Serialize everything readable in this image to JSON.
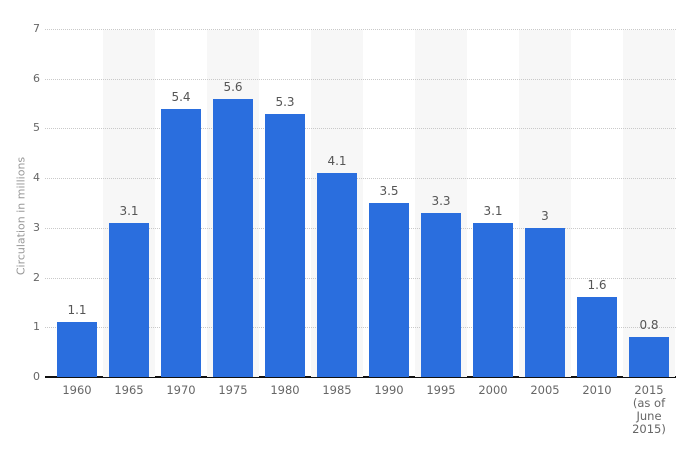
{
  "chart_data": {
    "type": "bar",
    "title": "",
    "xlabel": "",
    "ylabel": "Circulation in millions",
    "categories": [
      "1960",
      "1965",
      "1970",
      "1975",
      "1980",
      "1985",
      "1990",
      "1995",
      "2000",
      "2005",
      "2010",
      "2015\n(as of\nJune\n2015)"
    ],
    "values": [
      1.1,
      3.1,
      5.4,
      5.6,
      5.3,
      4.1,
      3.5,
      3.3,
      3.1,
      3,
      1.6,
      0.8
    ],
    "value_labels": [
      "1.1",
      "3.1",
      "5.4",
      "5.6",
      "5.3",
      "4.1",
      "3.5",
      "3.3",
      "3.1",
      "3",
      "1.6",
      "0.8"
    ],
    "ylim": [
      0,
      7
    ],
    "yticks": [
      "0",
      "1",
      "2",
      "3",
      "4",
      "5",
      "6",
      "7"
    ],
    "grid": "horizontal-dotted",
    "legend": "none",
    "colors": {
      "bar": "#2a6ede",
      "stripe": "#f7f7f7",
      "gridline": "#c9c9c9",
      "axis_line": "#111111",
      "tick_text": "#666666",
      "value_text": "#555555",
      "axis_title_text": "#999999",
      "background": "#ffffff"
    }
  }
}
